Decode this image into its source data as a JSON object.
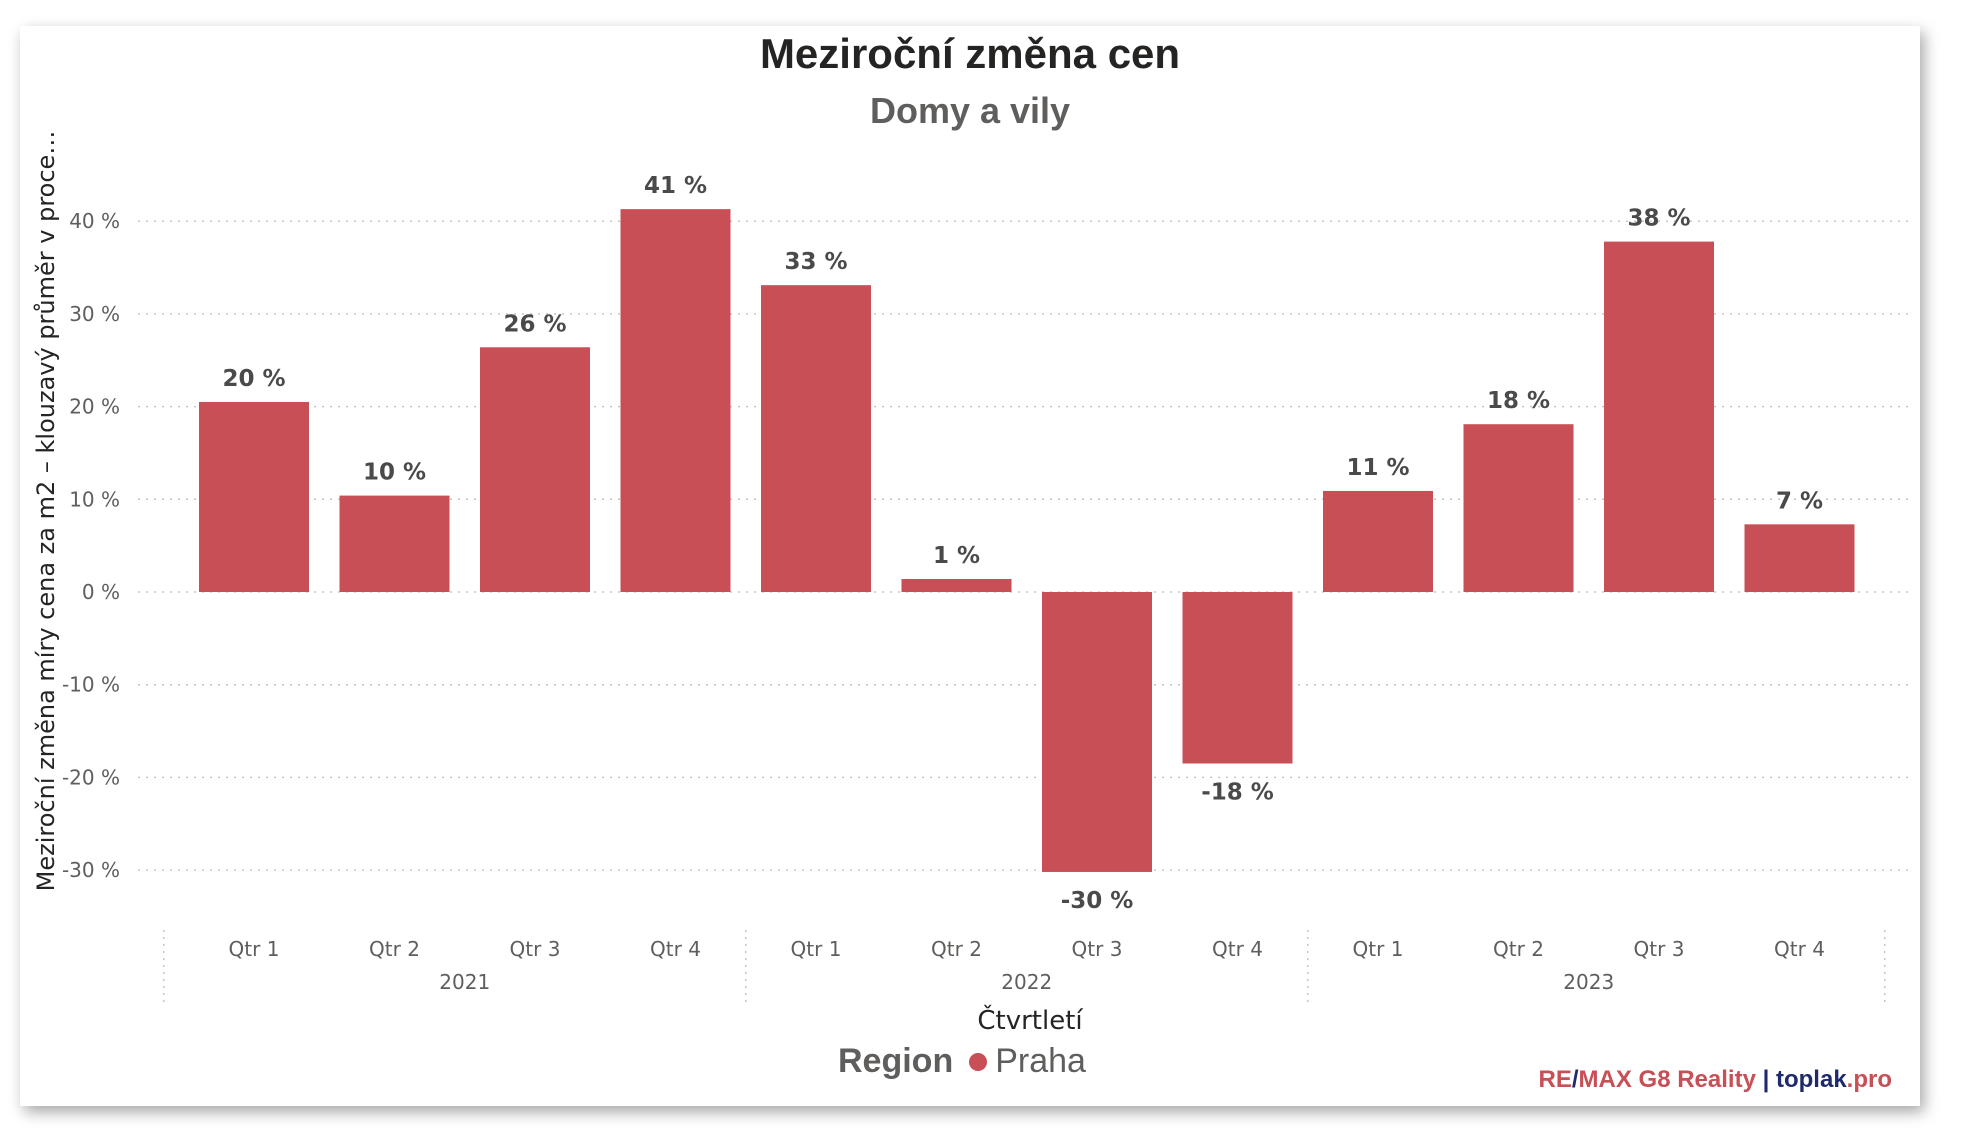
{
  "title": "Meziroční změna cen",
  "subtitle": "Domy a vily",
  "legend": {
    "title": "Region",
    "label": "Praha"
  },
  "credit": {
    "part1_red": "RE",
    "slash": "/",
    "part2_red": "MAX G8 Reality",
    "sep": "|",
    "part3_navy": "toplak",
    "part4_red": ".pro"
  },
  "colors": {
    "bar": "#c74f55",
    "navy": "#1f2a6b",
    "red": "#c74f55",
    "text": "#605e5c",
    "grid": "#c8c6c4"
  },
  "chart_data": {
    "type": "bar",
    "xlabel": "Čtvrtletí",
    "ylabel": "Meziroční změna míry cena za m2 – klouzavý průměr v proce…",
    "ylim": [
      -30,
      45
    ],
    "yticks": [
      -30,
      -20,
      -10,
      0,
      10,
      20,
      30,
      40
    ],
    "ytick_labels": [
      "-30 %",
      "-20 %",
      "-10 %",
      "0 %",
      "10 %",
      "20 %",
      "30 %",
      "40 %"
    ],
    "grid": true,
    "categories": [
      "Qtr 1",
      "Qtr 2",
      "Qtr 3",
      "Qtr 4",
      "Qtr 1",
      "Qtr 2",
      "Qtr 3",
      "Qtr 4",
      "Qtr 1",
      "Qtr 2",
      "Qtr 3",
      "Qtr 4"
    ],
    "years": [
      {
        "label": "2021",
        "count": 4
      },
      {
        "label": "2022",
        "count": 4
      },
      {
        "label": "2023",
        "count": 4
      }
    ],
    "series": [
      {
        "name": "Praha",
        "values": [
          20.5,
          10.4,
          26.4,
          41.3,
          33.1,
          1.4,
          -30.2,
          -18.5,
          10.9,
          18.1,
          37.8,
          7.3
        ],
        "labels": [
          "20 %",
          "10 %",
          "26 %",
          "41 %",
          "33 %",
          "1 %",
          "-30 %",
          "-18 %",
          "11 %",
          "18 %",
          "38 %",
          "7 %"
        ]
      }
    ]
  }
}
